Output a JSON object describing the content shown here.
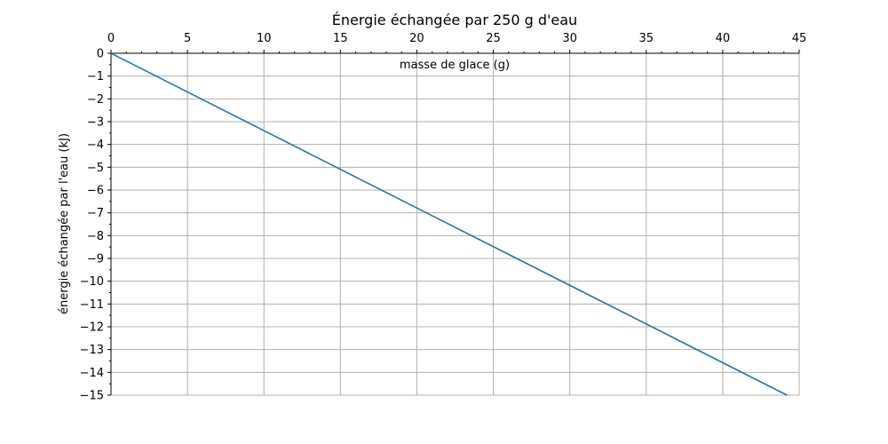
{
  "chart_data": {
    "type": "line",
    "title": "Énergie échangée par 250 g d'eau",
    "xlabel": "masse de glace (g)",
    "ylabel": "énergie échangée par l'eau (kJ)",
    "xlim": [
      0,
      45
    ],
    "ylim": [
      -15,
      0
    ],
    "x_ticks": [
      0,
      5,
      10,
      15,
      20,
      25,
      30,
      35,
      40,
      45
    ],
    "y_ticks": [
      0,
      -1,
      -2,
      -3,
      -4,
      -5,
      -6,
      -7,
      -8,
      -9,
      -10,
      -11,
      -12,
      -13,
      -14,
      -15
    ],
    "x_axis_position": "top",
    "grid": true,
    "series": [
      {
        "color": "#1f77b4",
        "x": [
          0,
          44.2
        ],
        "y": [
          0,
          -15
        ]
      }
    ]
  }
}
